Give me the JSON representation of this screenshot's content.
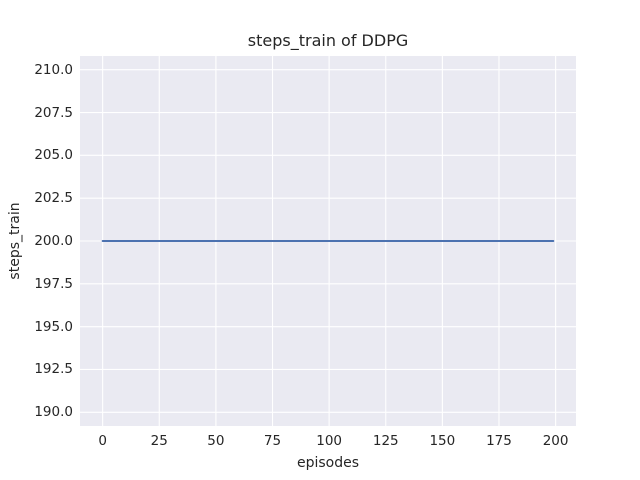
{
  "chart_data": {
    "type": "line",
    "title": "steps_train of DDPG",
    "xlabel": "episodes",
    "ylabel": "steps_train",
    "x_ticks": [
      0,
      25,
      50,
      75,
      100,
      125,
      150,
      175,
      200
    ],
    "x_tick_labels": [
      "0",
      "25",
      "50",
      "75",
      "100",
      "125",
      "150",
      "175",
      "200"
    ],
    "y_ticks": [
      190.0,
      192.5,
      195.0,
      197.5,
      200.0,
      202.5,
      205.0,
      207.5,
      210.0
    ],
    "y_tick_labels": [
      "190.0",
      "192.5",
      "195.0",
      "197.5",
      "200.0",
      "202.5",
      "205.0",
      "207.5",
      "210.0"
    ],
    "xlim": [
      -10,
      209
    ],
    "ylim": [
      189.2,
      210.8
    ],
    "grid": true,
    "legend": false,
    "series": [
      {
        "name": "steps_train",
        "x": [
          0,
          199
        ],
        "y": [
          200,
          200
        ]
      }
    ],
    "colors": {
      "line": "#4c72b0",
      "plot_background": "#eaeaf2",
      "grid": "#ffffff",
      "text": "#262626",
      "figure_background": "#ffffff"
    }
  }
}
